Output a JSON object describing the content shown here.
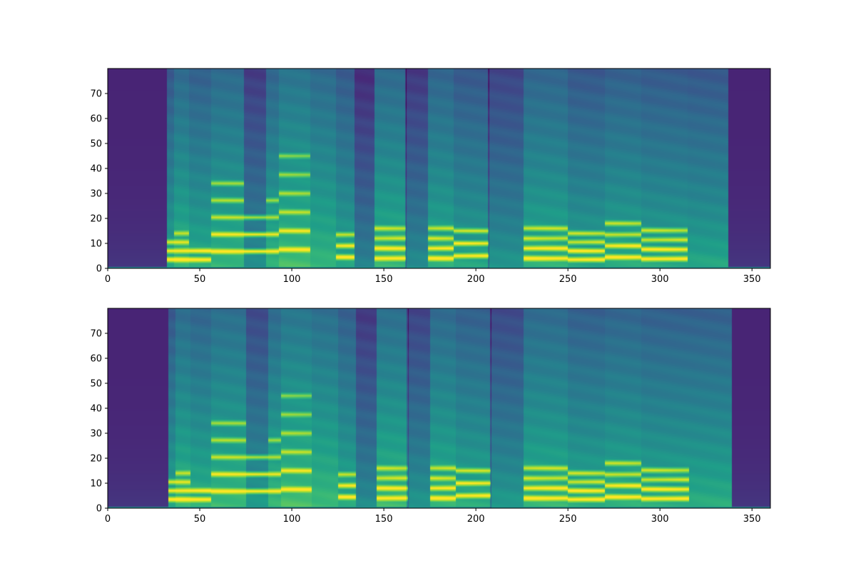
{
  "chart_data": [
    {
      "type": "heatmap",
      "title": "",
      "xlabel": "",
      "ylabel": "",
      "xlim": [
        0,
        360
      ],
      "ylim": [
        0,
        80
      ],
      "xticks": [
        0,
        50,
        100,
        150,
        200,
        250,
        300,
        350
      ],
      "yticks": [
        0,
        10,
        20,
        30,
        40,
        50,
        60,
        70
      ],
      "colormap": "viridis",
      "grid": false,
      "legend": "none",
      "silence_ranges": [
        [
          0,
          32
        ],
        [
          337,
          360
        ]
      ],
      "dark_lines_x": [
        162,
        207
      ],
      "segments": [
        {
          "x": [
            32,
            36
          ],
          "e": 0.55,
          "voiced": true,
          "f0": 3.5,
          "harmonics": 3
        },
        {
          "x": [
            36,
            44
          ],
          "e": 0.62,
          "voiced": true,
          "f0": 3.5,
          "harmonics": 4
        },
        {
          "x": [
            44,
            56
          ],
          "e": 0.58,
          "voiced": true,
          "f0": 3.5,
          "harmonics": 2
        },
        {
          "x": [
            56,
            74
          ],
          "e": 0.62,
          "voiced": true,
          "f0": 6.8,
          "harmonics": 5
        },
        {
          "x": [
            74,
            86
          ],
          "e": 0.45,
          "voiced": true,
          "f0": 6.8,
          "harmonics": 3
        },
        {
          "x": [
            86,
            93
          ],
          "e": 0.6,
          "voiced": true,
          "f0": 6.8,
          "harmonics": 4
        },
        {
          "x": [
            93,
            110
          ],
          "e": 0.66,
          "voiced": true,
          "f0": 7.5,
          "harmonics": 6
        },
        {
          "x": [
            110,
            124
          ],
          "e": 0.62,
          "voiced": false
        },
        {
          "x": [
            124,
            134
          ],
          "e": 0.56,
          "voiced": true,
          "f0": 4.5,
          "harmonics": 3
        },
        {
          "x": [
            134,
            145
          ],
          "e": 0.4,
          "voiced": false
        },
        {
          "x": [
            145,
            162
          ],
          "e": 0.62,
          "voiced": true,
          "f0": 4.0,
          "harmonics": 4
        },
        {
          "x": [
            162,
            174
          ],
          "e": 0.44,
          "voiced": false
        },
        {
          "x": [
            174,
            188
          ],
          "e": 0.6,
          "voiced": true,
          "f0": 4.0,
          "harmonics": 4
        },
        {
          "x": [
            188,
            207
          ],
          "e": 0.55,
          "voiced": true,
          "f0": 5.0,
          "harmonics": 3
        },
        {
          "x": [
            207,
            226
          ],
          "e": 0.48,
          "voiced": false
        },
        {
          "x": [
            226,
            250
          ],
          "e": 0.6,
          "voiced": true,
          "f0": 4.0,
          "harmonics": 4
        },
        {
          "x": [
            250,
            270
          ],
          "e": 0.55,
          "voiced": true,
          "f0": 3.5,
          "harmonics": 4
        },
        {
          "x": [
            270,
            290
          ],
          "e": 0.58,
          "voiced": true,
          "f0": 4.5,
          "harmonics": 4
        },
        {
          "x": [
            290,
            315
          ],
          "e": 0.56,
          "voiced": true,
          "f0": 3.8,
          "harmonics": 4
        },
        {
          "x": [
            315,
            337
          ],
          "e": 0.55,
          "voiced": false
        }
      ]
    },
    {
      "type": "heatmap",
      "title": "",
      "xlabel": "",
      "ylabel": "",
      "xlim": [
        0,
        360
      ],
      "ylim": [
        0,
        80
      ],
      "xticks": [
        0,
        50,
        100,
        150,
        200,
        250,
        300,
        350
      ],
      "yticks": [
        0,
        10,
        20,
        30,
        40,
        50,
        60,
        70
      ],
      "colormap": "viridis",
      "grid": false,
      "legend": "none",
      "silence_ranges": [
        [
          0,
          33
        ],
        [
          339,
          360
        ]
      ],
      "dark_lines_x": [
        163,
        208
      ],
      "segments": [
        {
          "x": [
            33,
            37
          ],
          "e": 0.55,
          "voiced": true,
          "f0": 3.5,
          "harmonics": 3
        },
        {
          "x": [
            37,
            45
          ],
          "e": 0.63,
          "voiced": true,
          "f0": 3.5,
          "harmonics": 4
        },
        {
          "x": [
            45,
            56
          ],
          "e": 0.6,
          "voiced": true,
          "f0": 3.5,
          "harmonics": 2
        },
        {
          "x": [
            56,
            75
          ],
          "e": 0.64,
          "voiced": true,
          "f0": 6.8,
          "harmonics": 5
        },
        {
          "x": [
            75,
            87
          ],
          "e": 0.5,
          "voiced": true,
          "f0": 6.8,
          "harmonics": 3
        },
        {
          "x": [
            87,
            94
          ],
          "e": 0.62,
          "voiced": true,
          "f0": 6.8,
          "harmonics": 4
        },
        {
          "x": [
            94,
            111
          ],
          "e": 0.67,
          "voiced": true,
          "f0": 7.5,
          "harmonics": 6
        },
        {
          "x": [
            111,
            125
          ],
          "e": 0.64,
          "voiced": false
        },
        {
          "x": [
            125,
            135
          ],
          "e": 0.58,
          "voiced": true,
          "f0": 4.5,
          "harmonics": 3
        },
        {
          "x": [
            135,
            146
          ],
          "e": 0.44,
          "voiced": false
        },
        {
          "x": [
            146,
            163
          ],
          "e": 0.64,
          "voiced": true,
          "f0": 4.0,
          "harmonics": 4
        },
        {
          "x": [
            163,
            175
          ],
          "e": 0.48,
          "voiced": false
        },
        {
          "x": [
            175,
            189
          ],
          "e": 0.62,
          "voiced": true,
          "f0": 4.0,
          "harmonics": 4
        },
        {
          "x": [
            189,
            208
          ],
          "e": 0.58,
          "voiced": true,
          "f0": 5.0,
          "harmonics": 3
        },
        {
          "x": [
            208,
            226
          ],
          "e": 0.5,
          "voiced": false
        },
        {
          "x": [
            226,
            250
          ],
          "e": 0.62,
          "voiced": true,
          "f0": 4.0,
          "harmonics": 4
        },
        {
          "x": [
            250,
            270
          ],
          "e": 0.58,
          "voiced": true,
          "f0": 3.5,
          "harmonics": 4
        },
        {
          "x": [
            270,
            290
          ],
          "e": 0.6,
          "voiced": true,
          "f0": 4.5,
          "harmonics": 4
        },
        {
          "x": [
            290,
            316
          ],
          "e": 0.58,
          "voiced": true,
          "f0": 3.8,
          "harmonics": 4
        },
        {
          "x": [
            316,
            339
          ],
          "e": 0.58,
          "voiced": false
        }
      ]
    }
  ]
}
